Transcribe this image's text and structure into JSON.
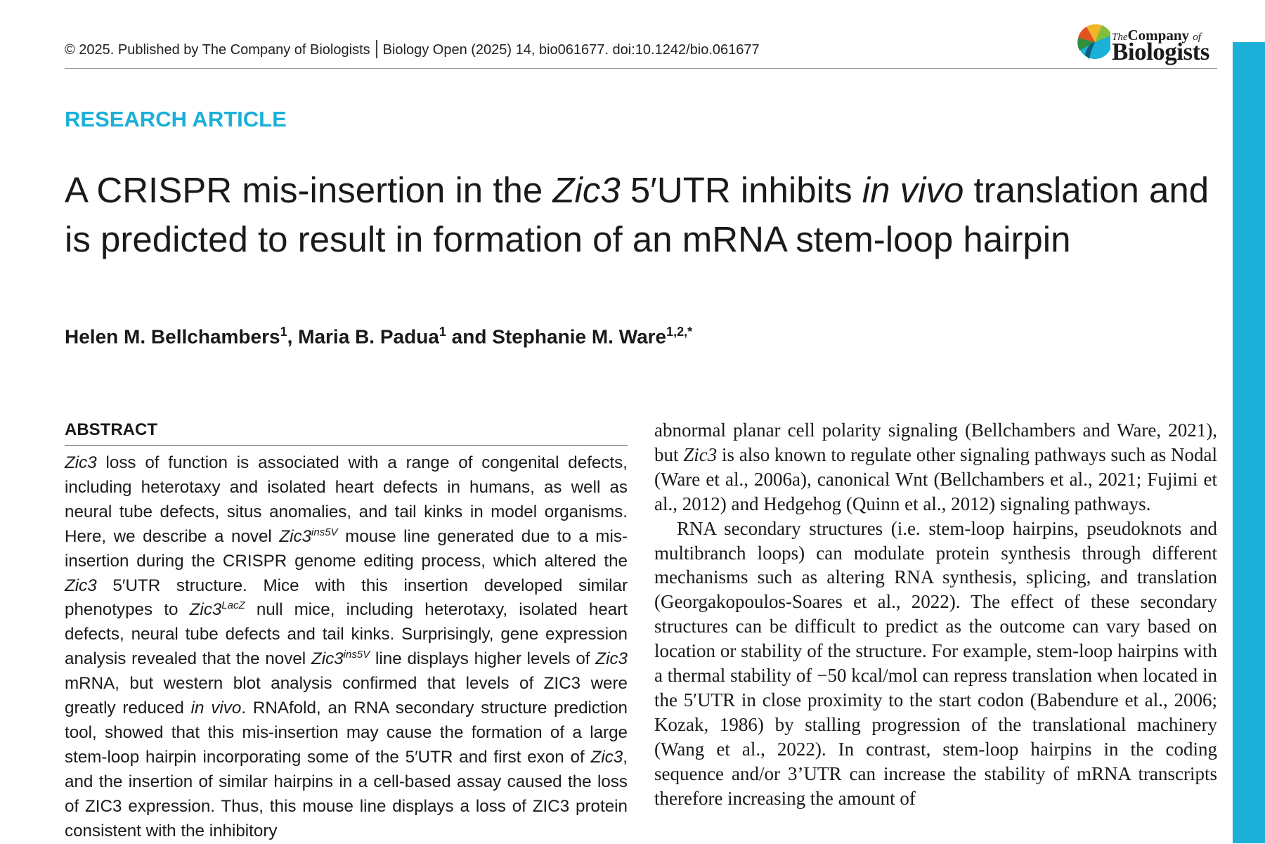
{
  "header": {
    "copyright": "© 2025. Published by The Company of Biologists",
    "citation": "Biology Open (2025) 14, bio061677. doi:10.1242/bio.061677"
  },
  "logo": {
    "line1_a": "The",
    "line1_b": "Company",
    "line1_c": "of",
    "line2": "Biologists"
  },
  "section_label": "RESEARCH ARTICLE",
  "title": {
    "t1": "A CRISPR mis-insertion in the ",
    "t2": "Zic3",
    "t3": " 5′UTR inhibits ",
    "t4": "in vivo",
    "t5": " translation and is predicted to result in formation of an mRNA stem-loop hairpin"
  },
  "authors": {
    "a1": "Helen M. Bellchambers",
    "a1_sup": "1",
    "sep1": ", ",
    "a2": "Maria B. Padua",
    "a2_sup": "1",
    "sep2": " and ",
    "a3": "Stephanie M. Ware",
    "a3_sup": "1,2,*"
  },
  "abstract": {
    "heading": "ABSTRACT",
    "s01": "Zic3",
    "s02": " loss of function is associated with a range of congenital defects, including heterotaxy and isolated heart defects in humans, as well as neural tube defects, situs anomalies, and tail kinks in model organisms. Here, we describe a novel ",
    "s03": "Zic3",
    "s04": "ins5V",
    "s05": " mouse line generated due to a mis-insertion during the CRISPR genome editing process, which altered the ",
    "s06": "Zic3",
    "s07": " 5′UTR structure. Mice with this insertion developed similar phenotypes to ",
    "s08": "Zic3",
    "s09": "LacZ",
    "s10": " null mice, including heterotaxy, isolated heart defects, neural tube defects and tail kinks. Surprisingly, gene expression analysis revealed that the novel ",
    "s11": "Zic3",
    "s12": "ins5V",
    "s13": " line displays higher levels of ",
    "s14": "Zic3",
    "s15": " mRNA, but western blot analysis confirmed that levels of ZIC3 were greatly reduced ",
    "s16": "in vivo",
    "s17": ". RNAfold, an RNA secondary structure prediction tool, showed that this mis-insertion may cause the formation of a large stem-loop hairpin incorporating some of the 5′UTR and first exon of ",
    "s18": "Zic3",
    "s19": ", and the insertion of similar hairpins in a cell-based assay caused the loss of ZIC3 expression. Thus, this mouse line displays a loss of ZIC3 protein consistent with the inhibitory"
  },
  "body": {
    "p1a": "abnormal planar cell polarity signaling (Bellchambers and Ware, 2021), but ",
    "p1b": "Zic3",
    "p1c": " is also known to regulate other signaling pathways such as Nodal (Ware et al., 2006a), canonical Wnt (Bellchambers et al., 2021; Fujimi et al., 2012) and Hedgehog (Quinn et al., 2012) signaling pathways.",
    "p2": "RNA secondary structures (i.e. stem-loop hairpins, pseudoknots and multibranch loops) can modulate protein synthesis through different mechanisms such as altering RNA synthesis, splicing, and translation (Georgakopoulos-Soares et al., 2022). The effect of these secondary structures can be difficult to predict as the outcome can vary based on location or stability of the structure. For example, stem-loop hairpins with a thermal stability of −50 kcal/mol can repress translation when located in the 5′UTR in close proximity to the start codon (Babendure et al., 2006; Kozak, 1986) by stalling progression of the translational machinery (Wang et al., 2022). In contrast, stem-loop hairpins in the coding sequence and/or 3’UTR can increase the stability of mRNA transcripts therefore increasing the amount of"
  },
  "colors": {
    "accent": "#1ab0d8",
    "text": "#1a1a1a"
  }
}
